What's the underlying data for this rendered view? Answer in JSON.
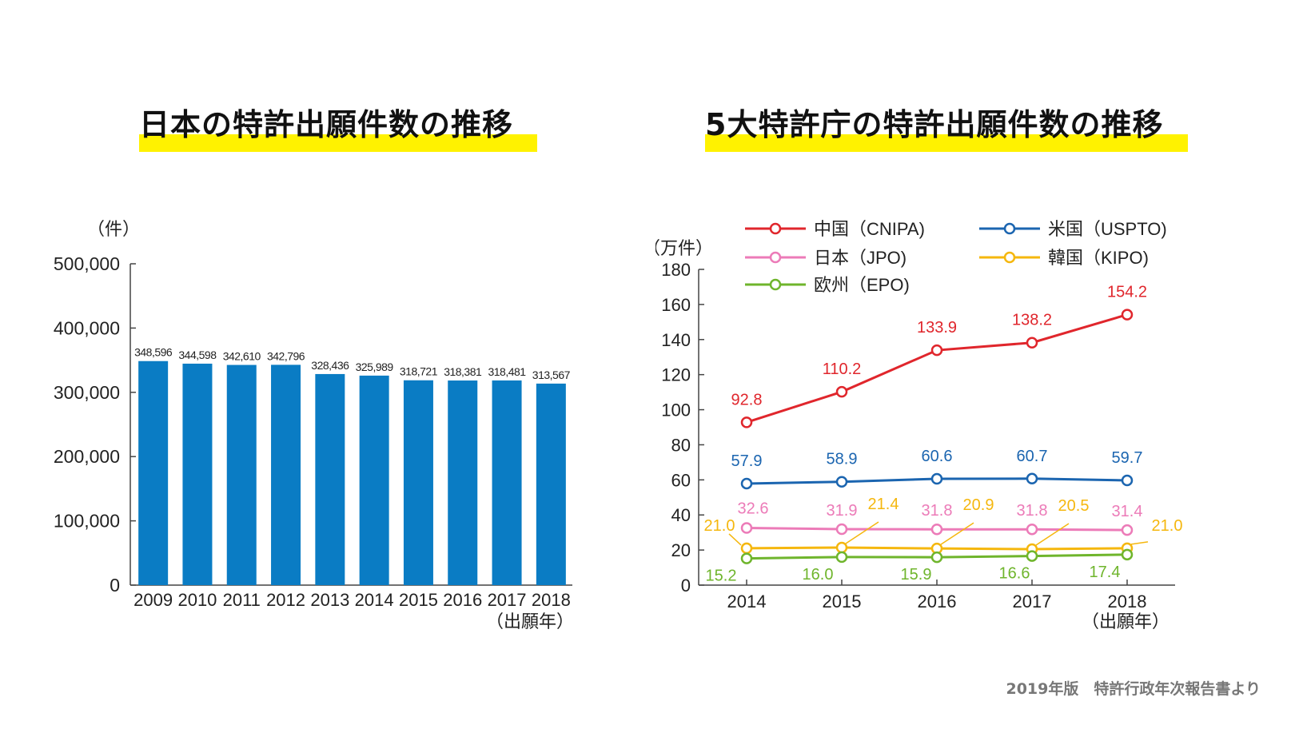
{
  "titles": {
    "left": "日本の特許出願件数の推移",
    "right": "5大特許庁の特許出願件数の推移"
  },
  "footer": "2019年版　特許行政年次報告書より",
  "colors": {
    "highlight": "#fff200",
    "bar": "#0a7cc4"
  },
  "chart_data": [
    {
      "type": "bar",
      "unit_label": "（件）",
      "x_unit_label": "（出願年）",
      "categories": [
        "2009",
        "2010",
        "2011",
        "2012",
        "2013",
        "2014",
        "2015",
        "2016",
        "2017",
        "2018"
      ],
      "values": [
        348596,
        344598,
        342610,
        342796,
        328436,
        325989,
        318721,
        318381,
        318481,
        313567
      ],
      "value_labels": [
        "348,596",
        "344,598",
        "342,610",
        "342,796",
        "328,436",
        "325,989",
        "318,721",
        "318,381",
        "318,481",
        "313,567"
      ],
      "ylim": [
        0,
        500000
      ],
      "yticks": [
        0,
        100000,
        200000,
        300000,
        400000,
        500000
      ],
      "ytick_labels": [
        "0",
        "100,000",
        "200,000",
        "300,000",
        "400,000",
        "500,000"
      ],
      "color": "#0a7cc4"
    },
    {
      "type": "line",
      "unit_label": "（万件）",
      "x_unit_label": "（出願年）",
      "categories": [
        "2014",
        "2015",
        "2016",
        "2017",
        "2018"
      ],
      "ylim": [
        0,
        180
      ],
      "yticks": [
        0,
        20,
        40,
        60,
        80,
        100,
        120,
        140,
        160,
        180
      ],
      "legend_placement": "top",
      "series": [
        {
          "name": "中国（CNIPA)",
          "color": "#e0262c",
          "values": [
            92.8,
            110.2,
            133.9,
            138.2,
            154.2
          ],
          "labels": [
            "92.8",
            "110.2",
            "133.9",
            "138.2",
            "154.2"
          ]
        },
        {
          "name": "米国（USPTO)",
          "color": "#1b65b0",
          "values": [
            57.9,
            58.9,
            60.6,
            60.7,
            59.7
          ],
          "labels": [
            "57.9",
            "58.9",
            "60.6",
            "60.7",
            "59.7"
          ]
        },
        {
          "name": "日本（JPO)",
          "color": "#ec7bb8",
          "values": [
            32.6,
            31.9,
            31.8,
            31.8,
            31.4
          ],
          "labels": [
            "32.6",
            "31.9",
            "31.8",
            "31.8",
            "31.4"
          ]
        },
        {
          "name": "韓国（KIPO)",
          "color": "#f5b70e",
          "values": [
            21.0,
            21.4,
            20.9,
            20.5,
            21.0
          ],
          "labels": [
            "21.0",
            "21.4",
            "20.9",
            "20.5",
            "21.0"
          ]
        },
        {
          "name": "欧州（EPO)",
          "color": "#6fb52c",
          "values": [
            15.2,
            16.0,
            15.9,
            16.6,
            17.4
          ],
          "labels": [
            "15.2",
            "16.0",
            "15.9",
            "16.6",
            "17.4"
          ]
        }
      ]
    }
  ]
}
